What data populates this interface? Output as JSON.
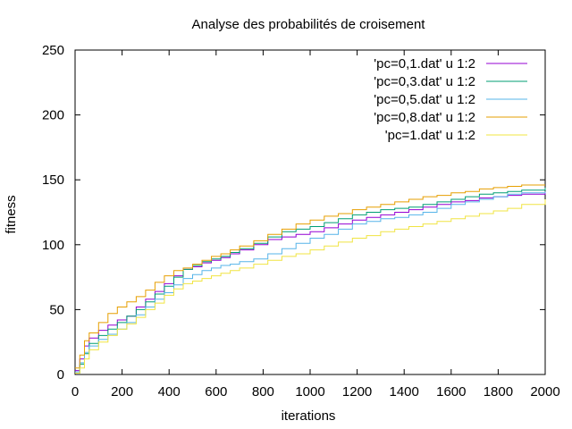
{
  "chart_data": {
    "type": "line",
    "title": "Analyse des probabilités de croisement",
    "xlabel": "iterations",
    "ylabel": "fitness",
    "xlim": [
      0,
      2000
    ],
    "ylim": [
      0,
      250
    ],
    "xticks": [
      0,
      200,
      400,
      600,
      800,
      1000,
      1200,
      1400,
      1600,
      1800,
      2000
    ],
    "yticks": [
      0,
      50,
      100,
      150,
      200,
      250
    ],
    "grid": false,
    "legend_position": "top-right",
    "series": [
      {
        "name": "'pc=0,1.dat' u 1:2",
        "color": "#9400d3",
        "points": [
          [
            0,
            3
          ],
          [
            20,
            12
          ],
          [
            40,
            22
          ],
          [
            60,
            28
          ],
          [
            100,
            34
          ],
          [
            140,
            38
          ],
          [
            180,
            42
          ],
          [
            220,
            45
          ],
          [
            260,
            52
          ],
          [
            300,
            58
          ],
          [
            340,
            64
          ],
          [
            380,
            70
          ],
          [
            420,
            76
          ],
          [
            460,
            81
          ],
          [
            500,
            83
          ],
          [
            540,
            86
          ],
          [
            580,
            88
          ],
          [
            620,
            90
          ],
          [
            660,
            93
          ],
          [
            700,
            96
          ],
          [
            760,
            100
          ],
          [
            820,
            104
          ],
          [
            880,
            106
          ],
          [
            940,
            108
          ],
          [
            1000,
            110
          ],
          [
            1060,
            113
          ],
          [
            1120,
            116
          ],
          [
            1180,
            119
          ],
          [
            1240,
            121
          ],
          [
            1300,
            123
          ],
          [
            1360,
            125
          ],
          [
            1420,
            127
          ],
          [
            1480,
            129
          ],
          [
            1540,
            131
          ],
          [
            1600,
            133
          ],
          [
            1660,
            134
          ],
          [
            1720,
            136
          ],
          [
            1780,
            137
          ],
          [
            1840,
            138
          ],
          [
            1900,
            139
          ],
          [
            2000,
            140
          ]
        ]
      },
      {
        "name": "'pc=0,3.dat' u 1:2",
        "color": "#009e73",
        "points": [
          [
            0,
            1
          ],
          [
            20,
            8
          ],
          [
            40,
            16
          ],
          [
            60,
            24
          ],
          [
            100,
            30
          ],
          [
            140,
            35
          ],
          [
            180,
            40
          ],
          [
            220,
            45
          ],
          [
            260,
            50
          ],
          [
            300,
            56
          ],
          [
            340,
            62
          ],
          [
            380,
            68
          ],
          [
            420,
            75
          ],
          [
            460,
            81
          ],
          [
            500,
            84
          ],
          [
            540,
            87
          ],
          [
            580,
            89
          ],
          [
            620,
            91
          ],
          [
            660,
            94
          ],
          [
            700,
            97
          ],
          [
            760,
            101
          ],
          [
            820,
            106
          ],
          [
            880,
            110
          ],
          [
            940,
            112
          ],
          [
            1000,
            114
          ],
          [
            1060,
            117
          ],
          [
            1120,
            120
          ],
          [
            1180,
            123
          ],
          [
            1240,
            125
          ],
          [
            1300,
            127
          ],
          [
            1360,
            128
          ],
          [
            1420,
            129
          ],
          [
            1480,
            131
          ],
          [
            1540,
            133
          ],
          [
            1600,
            135
          ],
          [
            1660,
            137
          ],
          [
            1720,
            139
          ],
          [
            1780,
            140
          ],
          [
            1840,
            141
          ],
          [
            1900,
            142
          ],
          [
            2000,
            144
          ]
        ]
      },
      {
        "name": "'pc=0,5.dat'  u 1:2",
        "color": "#56b4e9",
        "points": [
          [
            0,
            2
          ],
          [
            20,
            9
          ],
          [
            40,
            17
          ],
          [
            60,
            22
          ],
          [
            100,
            27
          ],
          [
            140,
            31
          ],
          [
            180,
            35
          ],
          [
            220,
            40
          ],
          [
            260,
            46
          ],
          [
            300,
            52
          ],
          [
            340,
            58
          ],
          [
            380,
            63
          ],
          [
            420,
            69
          ],
          [
            460,
            74
          ],
          [
            500,
            77
          ],
          [
            540,
            80
          ],
          [
            580,
            82
          ],
          [
            620,
            84
          ],
          [
            660,
            85
          ],
          [
            700,
            87
          ],
          [
            760,
            89
          ],
          [
            820,
            93
          ],
          [
            880,
            97
          ],
          [
            940,
            101
          ],
          [
            1000,
            105
          ],
          [
            1060,
            108
          ],
          [
            1120,
            112
          ],
          [
            1180,
            116
          ],
          [
            1240,
            118
          ],
          [
            1300,
            120
          ],
          [
            1360,
            121
          ],
          [
            1420,
            123
          ],
          [
            1480,
            125
          ],
          [
            1540,
            128
          ],
          [
            1600,
            131
          ],
          [
            1660,
            133
          ],
          [
            1720,
            135
          ],
          [
            1780,
            137
          ],
          [
            1840,
            139
          ],
          [
            1900,
            140
          ],
          [
            2000,
            141
          ]
        ]
      },
      {
        "name": "'pc=0,8.dat' u 1:2",
        "color": "#e69f00",
        "points": [
          [
            0,
            5
          ],
          [
            20,
            15
          ],
          [
            40,
            26
          ],
          [
            60,
            32
          ],
          [
            100,
            40
          ],
          [
            140,
            47
          ],
          [
            180,
            52
          ],
          [
            220,
            56
          ],
          [
            260,
            60
          ],
          [
            300,
            65
          ],
          [
            340,
            71
          ],
          [
            380,
            76
          ],
          [
            420,
            80
          ],
          [
            460,
            82
          ],
          [
            500,
            85
          ],
          [
            540,
            88
          ],
          [
            580,
            91
          ],
          [
            620,
            93
          ],
          [
            660,
            96
          ],
          [
            700,
            99
          ],
          [
            760,
            103
          ],
          [
            820,
            108
          ],
          [
            880,
            112
          ],
          [
            940,
            116
          ],
          [
            1000,
            119
          ],
          [
            1060,
            122
          ],
          [
            1120,
            124
          ],
          [
            1180,
            127
          ],
          [
            1240,
            129
          ],
          [
            1300,
            131
          ],
          [
            1360,
            133
          ],
          [
            1420,
            135
          ],
          [
            1480,
            137
          ],
          [
            1540,
            138
          ],
          [
            1600,
            140
          ],
          [
            1660,
            141
          ],
          [
            1720,
            143
          ],
          [
            1780,
            144
          ],
          [
            1840,
            145
          ],
          [
            1900,
            146
          ],
          [
            2000,
            146
          ]
        ]
      },
      {
        "name": "'pc=1.dat' u 1:2",
        "color": "#f0e442",
        "points": [
          [
            0,
            1
          ],
          [
            20,
            5
          ],
          [
            40,
            12
          ],
          [
            60,
            19
          ],
          [
            100,
            25
          ],
          [
            140,
            30
          ],
          [
            180,
            35
          ],
          [
            220,
            39
          ],
          [
            260,
            44
          ],
          [
            300,
            50
          ],
          [
            340,
            55
          ],
          [
            380,
            61
          ],
          [
            420,
            66
          ],
          [
            460,
            70
          ],
          [
            500,
            72
          ],
          [
            540,
            74
          ],
          [
            580,
            76
          ],
          [
            620,
            78
          ],
          [
            660,
            80
          ],
          [
            700,
            82
          ],
          [
            760,
            85
          ],
          [
            820,
            88
          ],
          [
            880,
            91
          ],
          [
            940,
            93
          ],
          [
            1000,
            96
          ],
          [
            1060,
            99
          ],
          [
            1120,
            102
          ],
          [
            1180,
            105
          ],
          [
            1240,
            107
          ],
          [
            1300,
            110
          ],
          [
            1360,
            112
          ],
          [
            1420,
            114
          ],
          [
            1480,
            116
          ],
          [
            1540,
            118
          ],
          [
            1600,
            120
          ],
          [
            1660,
            122
          ],
          [
            1720,
            124
          ],
          [
            1780,
            126
          ],
          [
            1840,
            128
          ],
          [
            1900,
            131
          ],
          [
            2000,
            135
          ]
        ]
      }
    ]
  }
}
